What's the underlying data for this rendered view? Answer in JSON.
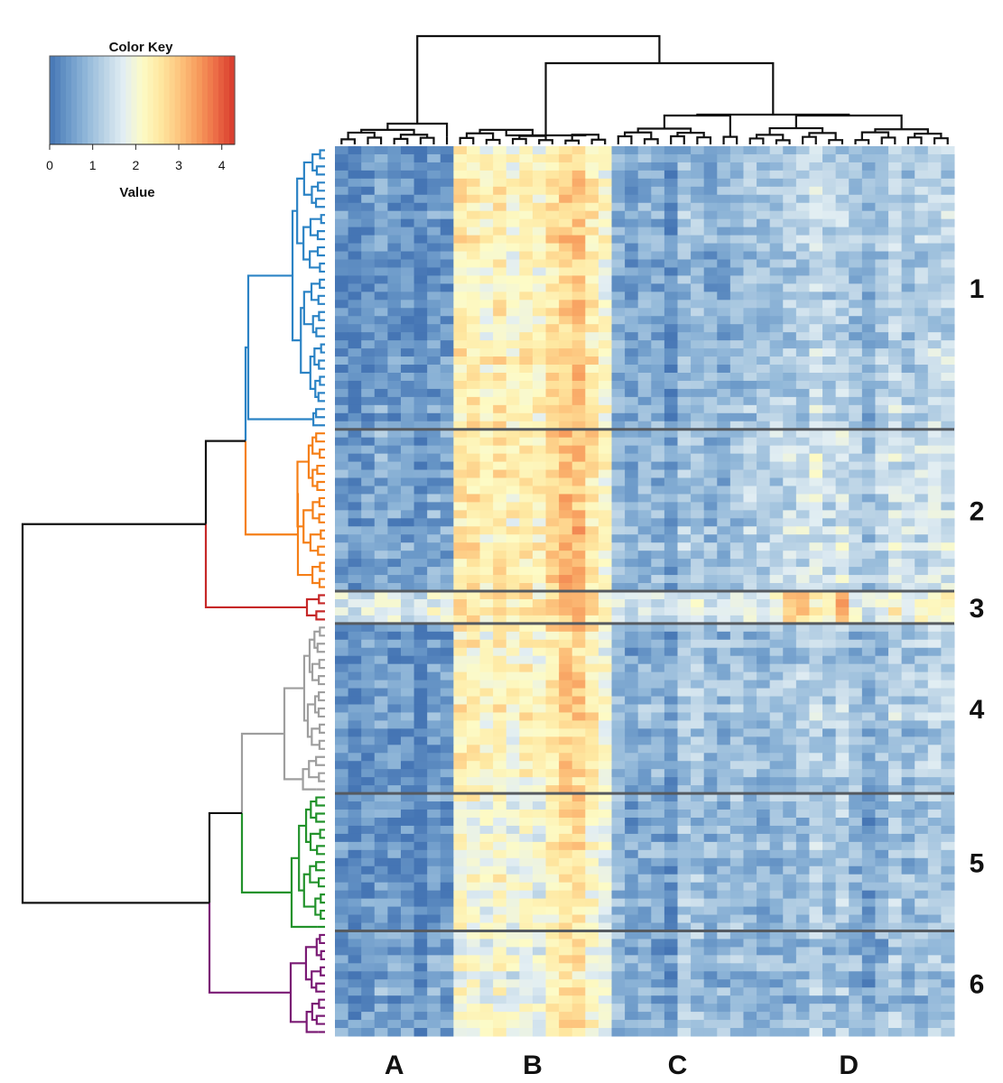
{
  "chart_data": {
    "type": "heatmap",
    "title": "",
    "color_key": {
      "title": "Color Key",
      "label": "Value",
      "range": [
        0,
        4.3
      ],
      "ticks": [
        "0",
        "1",
        "2",
        "3",
        "4"
      ],
      "tick_values": [
        0,
        1,
        2,
        3,
        4
      ],
      "palette": [
        "#4575b4",
        "#6a98c8",
        "#92b8d9",
        "#bcd4e6",
        "#e2eef3",
        "#fdfbc6",
        "#fee7a0",
        "#fdc57e",
        "#f79d5d",
        "#ec6c46",
        "#d7392c"
      ]
    },
    "column_groups": [
      {
        "label": "A",
        "columns": 9
      },
      {
        "label": "B",
        "columns": 12
      },
      {
        "label": "C",
        "columns": 10
      },
      {
        "label": "D",
        "columns": 16
      }
    ],
    "row_clusters": [
      {
        "label": "1",
        "rows": 35,
        "color": "#2b83c5"
      },
      {
        "label": "2",
        "rows": 20,
        "color": "#f57f17"
      },
      {
        "label": "3",
        "rows": 4,
        "color": "#c62828"
      },
      {
        "label": "4",
        "rows": 21,
        "color": "#9e9e9e"
      },
      {
        "label": "5",
        "rows": 17,
        "color": "#22922b"
      },
      {
        "label": "6",
        "rows": 13,
        "color": "#7a1a74"
      }
    ],
    "cell_means": {
      "description": "Approximate mean value per row cluster (rows) x column group (cols A,B,C,D)",
      "A": [
        0.3,
        0.5,
        1.7,
        0.3,
        0.3,
        0.4
      ],
      "B": [
        2.3,
        2.4,
        2.6,
        2.2,
        2.0,
        1.9
      ],
      "C": [
        0.8,
        0.9,
        1.7,
        0.9,
        0.9,
        0.8
      ],
      "D": [
        1.2,
        1.4,
        2.1,
        1.1,
        1.0,
        0.9
      ]
    },
    "col_dendrogram": true,
    "row_dendrogram": true,
    "legend_position": "top-left"
  }
}
